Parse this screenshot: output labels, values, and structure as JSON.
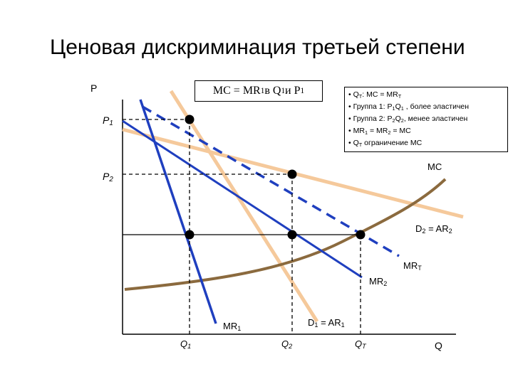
{
  "title": "Ценовая дискриминация третьей степени",
  "axis": {
    "y_label": "P",
    "x_label": "Q"
  },
  "mc_box": {
    "text": "MC = MR",
    "sub1": "1",
    "mid": " в Q",
    "sub2": "1",
    "end": " и P",
    "sub3": "1"
  },
  "notes": [
    {
      "pre": "• Q",
      "sub": "T",
      "post": ": MC = MR",
      "sub2": "T",
      "post2": ""
    },
    {
      "pre": "• Группа 1: P",
      "sub": "1",
      "post": "Q",
      "sub2": "1",
      "post2": " , более эластичен"
    },
    {
      "pre": "• Группа 2: P",
      "sub": "2",
      "post": "Q",
      "sub2": "2",
      "post2": ", менее эластичен"
    },
    {
      "pre": "• MR",
      "sub": "1",
      "post": " = MR",
      "sub2": "2",
      "post2": " = MC"
    },
    {
      "pre": "• Q",
      "sub": "T",
      "post": " ограничение MC",
      "sub2": "",
      "post2": ""
    }
  ],
  "labels": {
    "p1": {
      "main": "P",
      "sub": "1"
    },
    "p2": {
      "main": "P",
      "sub": "2"
    },
    "mc": "MC",
    "d2": {
      "a": "D",
      "as": "2",
      "b": " = AR",
      "bs": "2"
    },
    "mrt": {
      "main": "MR",
      "sub": "T"
    },
    "mr2": {
      "main": "MR",
      "sub": "2"
    },
    "mr1": {
      "main": "MR",
      "sub": "1"
    },
    "d1": {
      "a": "D",
      "as": "1",
      "b": " = AR",
      "bs": "1"
    },
    "q1": {
      "main": "Q",
      "sub": "1"
    },
    "q2": {
      "main": "Q",
      "sub": "2"
    },
    "qt": {
      "main": "Q",
      "sub": "T"
    }
  },
  "colors": {
    "demand": "#f5c99b",
    "mr": "#1f3fbf",
    "mc": "#8b6a3e",
    "axis": "#000000"
  }
}
